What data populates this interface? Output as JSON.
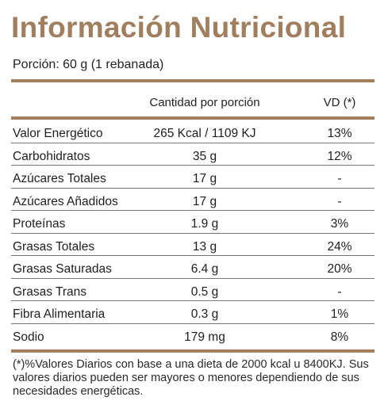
{
  "title": "Información Nutricional",
  "portion": "Porción: 60 g (1 rebanada)",
  "header": {
    "quantity": "Cantidad por porción",
    "dv": "VD (*)"
  },
  "rows": [
    {
      "name": "Valor Energético",
      "quantity": "265 Kcal / 1109 KJ",
      "dv": "13%"
    },
    {
      "name": "Carbohidratos",
      "quantity": "35 g",
      "dv": "12%"
    },
    {
      "name": "Azúcares Totales",
      "quantity": "17 g",
      "dv": "-"
    },
    {
      "name": "Azúcares Añadidos",
      "quantity": "17 g",
      "dv": "-"
    },
    {
      "name": "Proteínas",
      "quantity": "1.9 g",
      "dv": "3%"
    },
    {
      "name": "Grasas Totales",
      "quantity": "13 g",
      "dv": "24%"
    },
    {
      "name": "Grasas Saturadas",
      "quantity": "6.4 g",
      "dv": "20%"
    },
    {
      "name": "Grasas Trans",
      "quantity": "0.5 g",
      "dv": "-"
    },
    {
      "name": "Fibra Alimentaria",
      "quantity": "0.3 g",
      "dv": "1%"
    },
    {
      "name": "Sodio",
      "quantity": "179 mg",
      "dv": "8%"
    }
  ],
  "footnote": "(*)%Valores Diarios con base a una dieta de 2000 kcal u 8400KJ. Sus valores diarios pueden ser mayores o menores dependiendo de sus necesidades energéticas.",
  "colors": {
    "accent": "#a07e5e",
    "text": "#1e1e1e"
  }
}
